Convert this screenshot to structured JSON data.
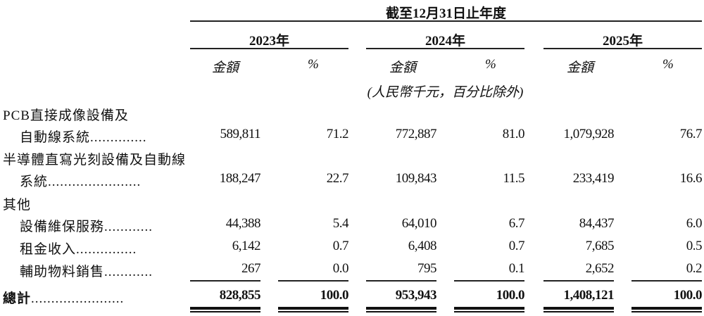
{
  "header": {
    "period": "截至12月31日止年度",
    "years": [
      "2023年",
      "2024年",
      "2025年"
    ],
    "amount_label": "金額",
    "percent_label": "%",
    "unit_note": "(人民幣千元，百分比除外)"
  },
  "rows": [
    {
      "label_line1": "PCB直接成像設備及",
      "label": "自動線系統",
      "dots": "..............",
      "values": [
        "589,811",
        "71.2",
        "772,887",
        "81.0",
        "1,079,928",
        "76.7"
      ]
    },
    {
      "label_line1": "半導體直寫光刻設備及自動線",
      "label": "系統",
      "dots": ".......................",
      "values": [
        "188,247",
        "22.7",
        "109,843",
        "11.5",
        "233,419",
        "16.6"
      ]
    },
    {
      "label_line1": "其他"
    },
    {
      "label": "設備維保服務",
      "dots": "............",
      "values": [
        "44,388",
        "5.4",
        "64,010",
        "6.7",
        "84,437",
        "6.0"
      ]
    },
    {
      "label": "租金收入",
      "dots": "...............",
      "values": [
        "6,142",
        "0.7",
        "6,408",
        "0.7",
        "7,685",
        "0.5"
      ]
    },
    {
      "label": "輔助物料銷售",
      "dots": "............",
      "values": [
        "267",
        "0.0",
        "795",
        "0.1",
        "2,652",
        "0.2"
      ]
    }
  ],
  "total": {
    "label": "總計",
    "dots": ".......................",
    "values": [
      "828,855",
      "100.0",
      "953,943",
      "100.0",
      "1,408,121",
      "100.0"
    ]
  }
}
